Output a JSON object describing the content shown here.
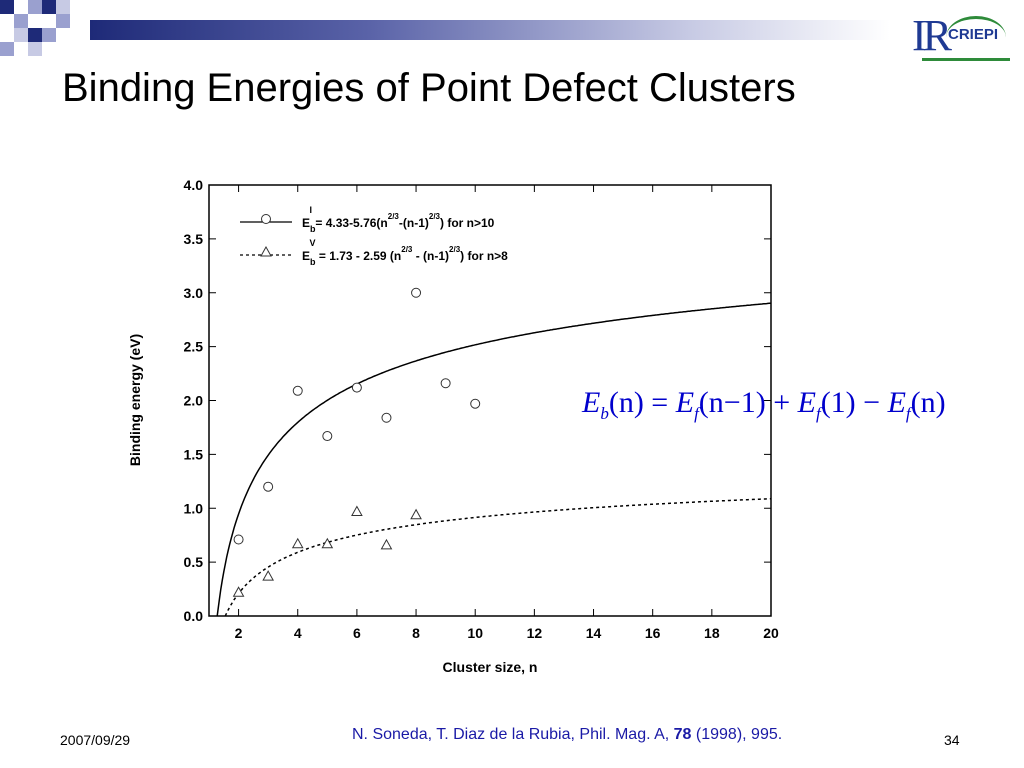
{
  "slide": {
    "title": "Binding Energies of Point Defect Clusters",
    "logo_text": "CRIEPI",
    "logo_mark": "IR",
    "date": "2007/09/29",
    "page_number": "34",
    "reference": {
      "prefix": "N. Soneda, T. Diaz de la Rubia, Phil. Mag. A, ",
      "volume": "78",
      "suffix": " (1998), 995."
    },
    "accent_color": "#1e2a78",
    "reference_color": "#1a1aa6",
    "formula_color": "#0000cc"
  },
  "formula": {
    "text": "E_b(n) = E_f(n−1) + E_f(1) − E_f(n)",
    "parts": [
      "E",
      "b",
      "(n) = ",
      "E",
      "f",
      "(n−1) + ",
      "E",
      "f",
      "(1) − ",
      "E",
      "f",
      "(n)"
    ]
  },
  "chart_data": {
    "type": "scatter",
    "title": "",
    "xlabel": "Cluster size, n",
    "ylabel": "Binding energy (eV)",
    "xlim": [
      1,
      20
    ],
    "ylim": [
      0,
      4
    ],
    "xticks": [
      2,
      4,
      6,
      8,
      10,
      12,
      14,
      16,
      18,
      20
    ],
    "yticks": [
      0.0,
      0.5,
      1.0,
      1.5,
      2.0,
      2.5,
      3.0,
      3.5,
      4.0
    ],
    "grid": false,
    "legend_position": "top-left",
    "series": [
      {
        "name": "E_b^I = 4.33-5.76(n^2/3-(n-1)^2/3) for n>10",
        "marker": "circle",
        "line": "solid",
        "fit": {
          "a": 4.33,
          "b": 5.76
        },
        "points": [
          [
            2,
            0.71
          ],
          [
            3,
            1.2
          ],
          [
            4,
            2.09
          ],
          [
            5,
            1.67
          ],
          [
            6,
            2.12
          ],
          [
            7,
            1.84
          ],
          [
            8,
            3.0
          ],
          [
            9,
            2.16
          ],
          [
            10,
            1.97
          ]
        ]
      },
      {
        "name": "E_b^V = 1.73 - 2.59 (n^2/3 - (n-1)^2/3) for n>8",
        "marker": "triangle",
        "line": "dashed",
        "fit": {
          "a": 1.73,
          "b": 2.59
        },
        "points": [
          [
            2,
            0.22
          ],
          [
            3,
            0.37
          ],
          [
            4,
            0.67
          ],
          [
            5,
            0.67
          ],
          [
            6,
            0.97
          ],
          [
            7,
            0.66
          ],
          [
            8,
            0.94
          ]
        ]
      }
    ],
    "legend": [
      {
        "main": "E",
        "sub": "b",
        "sup": "I",
        "text1": " = 4.33-5.76(n",
        "sup1": "2/3",
        "text2": "-(n-1)",
        "sup2": "2/3",
        "text3": ")    for n>10"
      },
      {
        "main": "E",
        "sub": "b",
        "sup": "V",
        "text1": " = 1.73 - 2.59 (n",
        "sup1": "2/3",
        "text2": " - (n-1)",
        "sup2": "2/3",
        "text3": ")    for n>8"
      }
    ]
  }
}
